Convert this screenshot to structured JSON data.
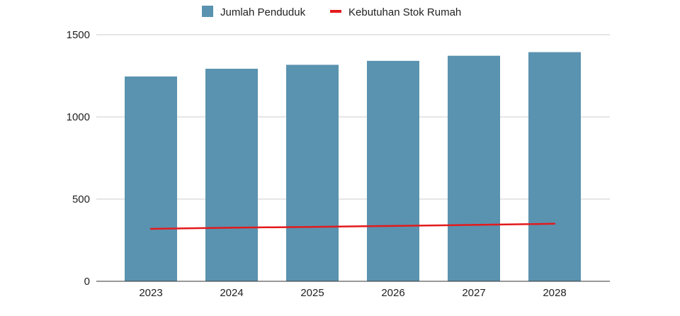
{
  "chart_data": {
    "type": "bar",
    "categories": [
      "2023",
      "2024",
      "2025",
      "2026",
      "2027",
      "2028"
    ],
    "series": [
      {
        "name": "Jumlah Penduduk",
        "kind": "bar",
        "color": "#5a93b0",
        "values": [
          1246,
          1293,
          1317,
          1341,
          1372,
          1394
        ]
      },
      {
        "name": "Kebutuhan Stok Rumah",
        "kind": "line",
        "color": "#e31a1c",
        "values": [
          319,
          326,
          331,
          337,
          343,
          350
        ]
      }
    ],
    "title": "",
    "xlabel": "",
    "ylabel": "",
    "ylim": [
      0,
      1500
    ],
    "yticks": [
      "0",
      "500",
      "1000",
      "1500"
    ],
    "grid": true,
    "legend_position": "top-center"
  }
}
